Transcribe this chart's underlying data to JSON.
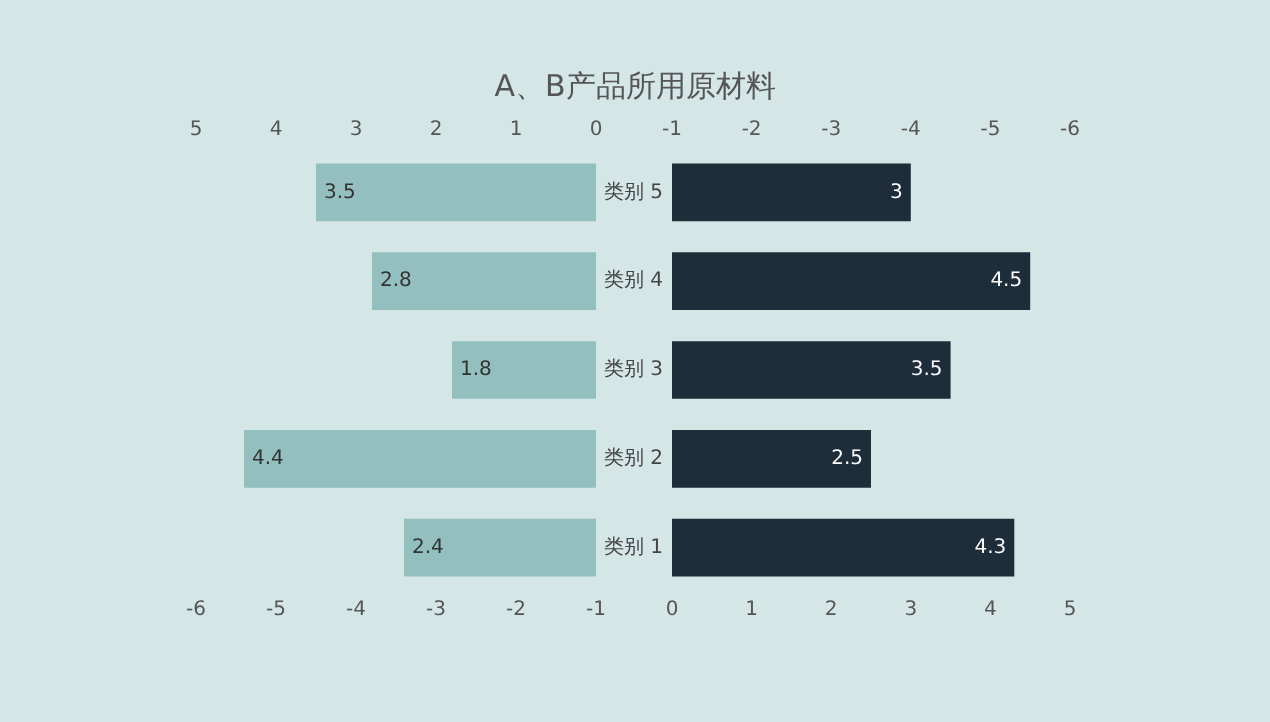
{
  "chart_data": [
    {
      "type": "bar",
      "title": "A、B产品所用原材料",
      "orientation": "horizontal",
      "categories": [
        "类别 5",
        "类别 4",
        "类别 3",
        "类别 2",
        "类别 1"
      ],
      "series": [
        {
          "color": "#93bfbf",
          "values": [
            3.5,
            2.8,
            1.8,
            4.4,
            2.4
          ],
          "axis": "x2"
        }
      ],
      "xlim": [
        -6,
        -1
      ],
      "xticks": [
        -6,
        -5,
        -4,
        -3,
        -2,
        -1
      ],
      "x2lim": [
        5,
        0
      ],
      "x2ticks": [
        5,
        4,
        3,
        2,
        1,
        0
      ],
      "data_labels": true,
      "grid": false,
      "legend": false
    },
    {
      "type": "bar",
      "orientation": "horizontal",
      "categories": [
        null,
        null,
        null,
        null,
        null
      ],
      "series": [
        {
          "color": "#1e2d3a",
          "values": [
            3,
            4.5,
            3.5,
            2.5,
            4.3
          ]
        }
      ],
      "xlim": [
        0,
        5
      ],
      "xticks": [
        0,
        1,
        2,
        3,
        4,
        5
      ],
      "x2lim": [
        -1,
        -6
      ],
      "x2ticks": [
        -1,
        -2,
        -3,
        -4,
        -5,
        -6
      ],
      "data_labels": true,
      "grid": false,
      "legend": false,
      "tick_labels": "x"
    }
  ]
}
